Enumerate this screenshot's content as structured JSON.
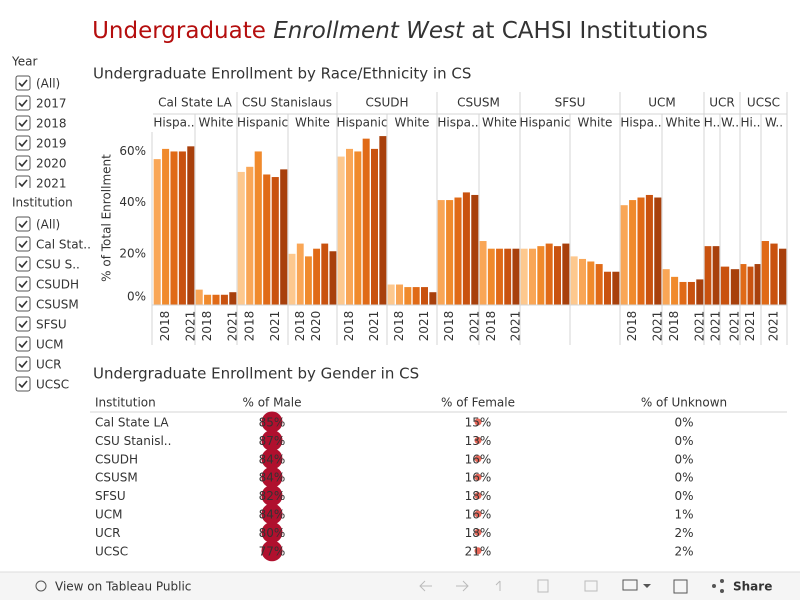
{
  "title": {
    "part1": "Undergraduate",
    "part2": "Enrollment West",
    "part3": "at CAHSI Institutions"
  },
  "filters": [
    {
      "title": "Year",
      "items": [
        "(All)",
        "2017",
        "2018",
        "2019",
        "2020",
        "2021"
      ]
    },
    {
      "title": "Institution",
      "items": [
        "(All)",
        "Cal Stat..",
        "CSU S..",
        "CSUDH",
        "CSUSM",
        "SFSU",
        "UCM",
        "UCR",
        "UCSC"
      ]
    }
  ],
  "chart_data": {
    "type": "bar",
    "title": "Undergraduate Enrollment by Race/Ethnicity in CS",
    "y_label": "% of Total Enrollment",
    "ylim": [
      0,
      67.6
    ],
    "yticks": [
      {
        "value": 0,
        "label": "0%"
      },
      {
        "value": 20,
        "label": "20%"
      },
      {
        "value": 40,
        "label": "40%"
      },
      {
        "value": 60,
        "label": "60%"
      }
    ],
    "colors": [
      "#fdc88e",
      "#f9a656",
      "#f08a2c",
      "#e06a17",
      "#c9520f",
      "#a8400c"
    ],
    "groups": [
      {
        "name": "Cal State LA",
        "subgroups": [
          {
            "name": "Hispa..",
            "x": [
              null,
              "2018",
              null,
              null,
              "2021"
            ],
            "values": [
              57,
              61,
              60,
              60,
              62
            ]
          },
          {
            "name": "White",
            "x": [
              null,
              "2018",
              null,
              null,
              "2021"
            ],
            "values": [
              6,
              4,
              4,
              4,
              5
            ]
          }
        ]
      },
      {
        "name": "CSU Stanislaus",
        "subgroups": [
          {
            "name": "Hispanic",
            "x": [
              null,
              "2018",
              null,
              null,
              "2021",
              null
            ],
            "values": [
              52,
              54,
              60,
              51,
              50,
              53
            ]
          },
          {
            "name": "White",
            "x": [
              null,
              "2018",
              null,
              "2020",
              null,
              null
            ],
            "values": [
              20,
              24,
              19,
              22,
              24,
              21
            ]
          }
        ]
      },
      {
        "name": "CSUDH",
        "subgroups": [
          {
            "name": "Hispanic",
            "x": [
              null,
              "2018",
              null,
              null,
              "2021",
              null
            ],
            "values": [
              58,
              61,
              60,
              65,
              61,
              66
            ]
          },
          {
            "name": "White",
            "x": [
              null,
              "2018",
              null,
              null,
              "2021",
              null
            ],
            "values": [
              8,
              8,
              7,
              7,
              7,
              5
            ]
          }
        ]
      },
      {
        "name": "CSUSM",
        "subgroups": [
          {
            "name": "Hispa..",
            "x": [
              null,
              "2018",
              null,
              null,
              "2021"
            ],
            "values": [
              41,
              41,
              42,
              44,
              43
            ]
          },
          {
            "name": "White",
            "x": [
              null,
              "2018",
              null,
              null,
              "2021"
            ],
            "values": [
              25,
              22,
              22,
              22,
              22
            ]
          }
        ]
      },
      {
        "name": "SFSU",
        "subgroups": [
          {
            "name": "Hispanic",
            "x": [
              null,
              null,
              null,
              null,
              null,
              null
            ],
            "values": [
              22,
              22,
              23,
              24,
              23,
              24
            ]
          },
          {
            "name": "White",
            "x": [
              null,
              null,
              null,
              null,
              null,
              null
            ],
            "values": [
              19,
              18,
              17,
              16,
              13,
              13
            ]
          }
        ]
      },
      {
        "name": "UCM",
        "subgroups": [
          {
            "name": "Hispa..",
            "x": [
              null,
              "2018",
              null,
              null,
              "2021"
            ],
            "values": [
              39,
              41,
              42,
              43,
              42
            ]
          },
          {
            "name": "White",
            "x": [
              null,
              "2018",
              null,
              null,
              "2021"
            ],
            "values": [
              14,
              11,
              9,
              9,
              10
            ]
          }
        ]
      },
      {
        "name": "UCR",
        "subgroups": [
          {
            "name": "H..",
            "x": [
              null,
              "2021"
            ],
            "values": [
              23,
              23
            ]
          },
          {
            "name": "W..",
            "x": [
              null,
              "2021"
            ],
            "values": [
              15,
              14
            ]
          }
        ]
      },
      {
        "name": "UCSC",
        "subgroups": [
          {
            "name": "Hi..",
            "x": [
              null,
              "2021",
              null
            ],
            "values": [
              16,
              15,
              16
            ]
          },
          {
            "name": "W..",
            "x": [
              null,
              "2021",
              null
            ],
            "values": [
              25,
              24,
              22
            ]
          }
        ]
      }
    ]
  },
  "gender_table": {
    "title": "Undergraduate Enrollment by Gender in CS",
    "columns": [
      "Institution",
      "% of Male",
      "% of Female",
      "% of Unknown"
    ],
    "rows": [
      [
        "Cal State LA",
        "85%",
        "15%",
        "0%"
      ],
      [
        "CSU Stanisl..",
        "87%",
        "13%",
        "0%"
      ],
      [
        "CSUDH",
        "84%",
        "16%",
        "0%"
      ],
      [
        "CSUSM",
        "84%",
        "16%",
        "0%"
      ],
      [
        "SFSU",
        "82%",
        "18%",
        "0%"
      ],
      [
        "UCM",
        "84%",
        "16%",
        "1%"
      ],
      [
        "UCR",
        "80%",
        "18%",
        "2%"
      ],
      [
        "UCSC",
        "77%",
        "21%",
        "2%"
      ]
    ]
  },
  "toolbar": {
    "view": "View on Tableau Public",
    "share": "Share"
  }
}
